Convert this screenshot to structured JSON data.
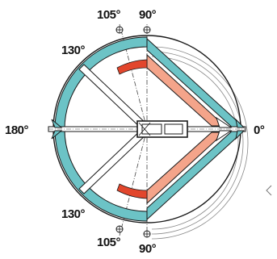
{
  "labels": {
    "top_105": "105°",
    "top_90": "90°",
    "upper_130": "130°",
    "left_180": "180°",
    "right_0": "0°",
    "lower_130": "130°",
    "bottom_105": "105°",
    "bottom_90": "90°"
  },
  "colors": {
    "teal": "#6cc3c6",
    "salmon": "#f4a48a",
    "red": "#e2462c",
    "ink": "#1a1a1a",
    "grey": "#9a9a9a"
  }
}
